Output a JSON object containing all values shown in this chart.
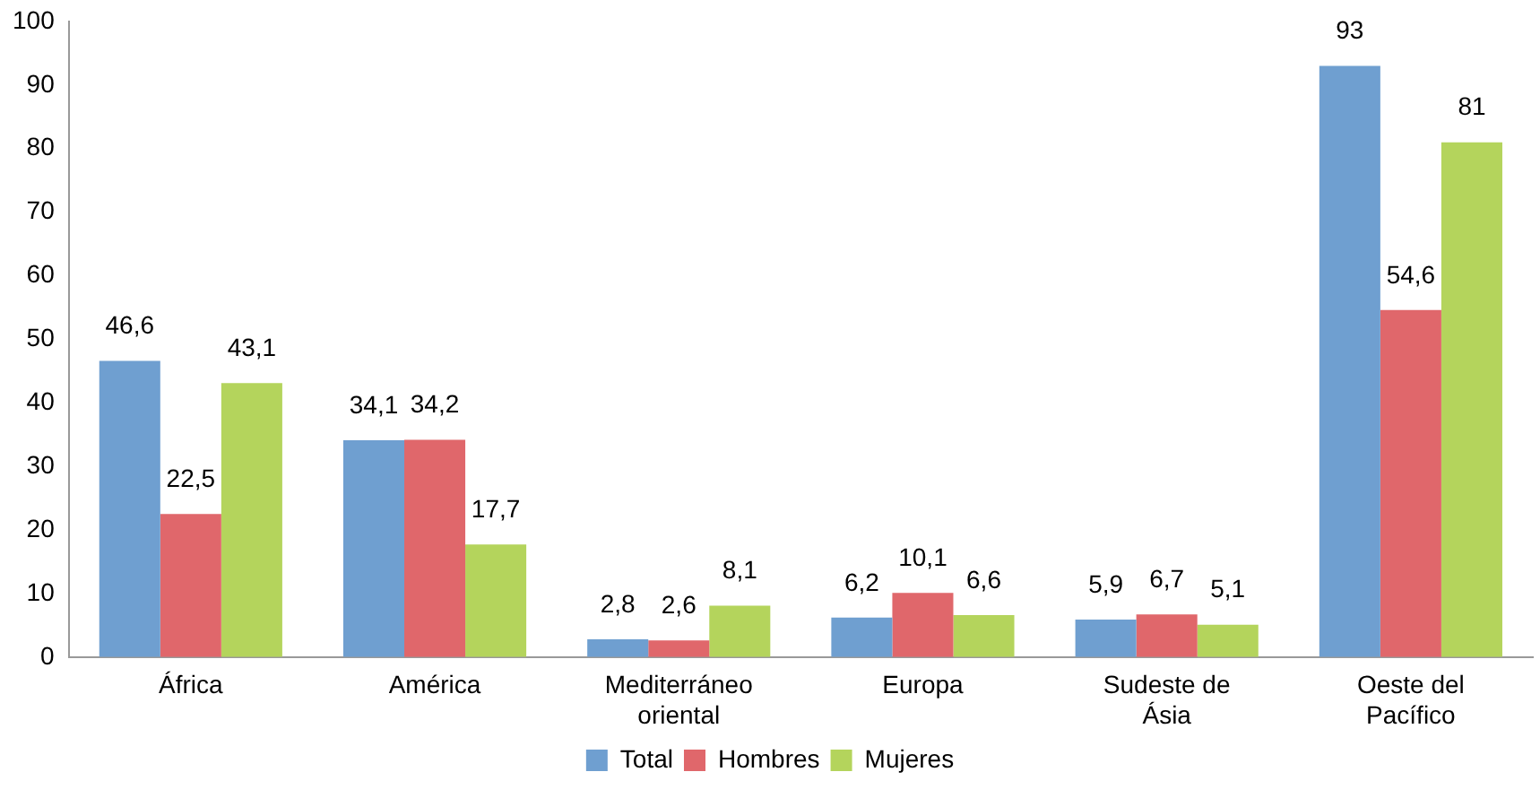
{
  "chart_data": {
    "type": "bar",
    "categories": [
      "África",
      "América",
      "Mediterráneo oriental",
      "Europa",
      "Sudeste de Ásia",
      "Oeste del Pacífico"
    ],
    "series": [
      {
        "name": "Total",
        "color": "#6f9fd0",
        "values": [
          46.6,
          34.1,
          2.8,
          6.2,
          5.9,
          93
        ],
        "value_labels": [
          "46,6",
          "34,1",
          "2,8",
          "6,2",
          "5,9",
          "93"
        ]
      },
      {
        "name": "Hombres",
        "color": "#e0676b",
        "values": [
          22.5,
          34.2,
          2.6,
          10.1,
          6.7,
          54.6
        ],
        "value_labels": [
          "22,5",
          "34,2",
          "2,6",
          "10,1",
          "6,7",
          "54,6"
        ]
      },
      {
        "name": "Mujeres",
        "color": "#b4d45c",
        "values": [
          43.1,
          17.7,
          8.1,
          6.6,
          5.1,
          81
        ],
        "value_labels": [
          "43,1",
          "17,7",
          "8,1",
          "6,6",
          "5,1",
          "81"
        ]
      }
    ],
    "ylim": [
      0,
      100
    ],
    "yticks": [
      0,
      10,
      20,
      30,
      40,
      50,
      60,
      70,
      80,
      90,
      100
    ],
    "grid": false,
    "legend": "bottom"
  }
}
